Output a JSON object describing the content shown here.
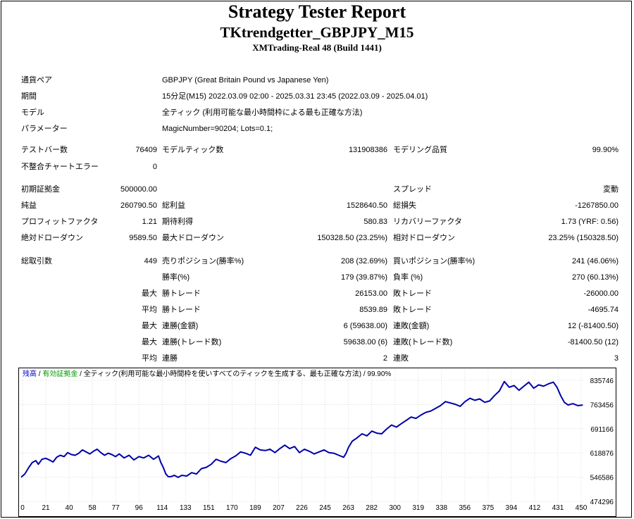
{
  "report": {
    "title": "Strategy Tester Report",
    "subtitle": "TKtrendgetter_GBPJPY_M15",
    "server": "XMTrading-Real 48 (Build 1441)"
  },
  "info": [
    {
      "label": "通貨ペア",
      "value": "GBPJPY (Great Britain Pound vs Japanese Yen)"
    },
    {
      "label": "期間",
      "value": "15分足(M15) 2022.03.09 02:00 - 2025.03.31 23:45 (2022.03.09 - 2025.04.01)"
    },
    {
      "label": "モデル",
      "value": "全ティック (利用可能な最小時間枠による最も正確な方法)"
    },
    {
      "label": "パラメーター",
      "value": "MagicNumber=90204; Lots=0.1;"
    }
  ],
  "stats": {
    "bars_label": "テストバー数",
    "bars": "76409",
    "ticks_label": "モデルティック数",
    "ticks": "131908386",
    "quality_label": "モデリング品質",
    "quality": "99.90%",
    "mismatch_label": "不整合チャートエラー",
    "mismatch": "0",
    "deposit_label": "初期証拠金",
    "deposit": "500000.00",
    "spread_label": "スプレッド",
    "spread": "変動",
    "net_label": "純益",
    "net": "260790.50",
    "gross_profit_label": "総利益",
    "gross_profit": "1528640.50",
    "gross_loss_label": "総損失",
    "gross_loss": "-1267850.00",
    "pf_label": "プロフィットファクタ",
    "pf": "1.21",
    "expected_label": "期待利得",
    "expected": "580.83",
    "recovery_label": "リカバリーファクタ",
    "recovery": "1.73 (YRF: 0.56)",
    "abs_dd_label": "絶対ドローダウン",
    "abs_dd": "9589.50",
    "max_dd_label": "最大ドローダウン",
    "max_dd": "150328.50 (23.25%)",
    "rel_dd_label": "相対ドローダウン",
    "rel_dd": "23.25% (150328.50)",
    "total_trades_label": "総取引数",
    "total_trades": "449",
    "short_label": "売りポジション(勝率%)",
    "short": "208 (32.69%)",
    "long_label": "買いポジション(勝率%)",
    "long": "241 (46.06%)",
    "win_pct_label": "勝率(%)",
    "win_pct": "179 (39.87%)",
    "loss_pct_label": "負率 (%)",
    "loss_pct": "270 (60.13%)",
    "max_word": "最大",
    "avg_word": "平均",
    "largest_win_label": "勝トレード",
    "largest_win": "26153.00",
    "largest_loss_label": "敗トレード",
    "largest_loss": "-26000.00",
    "avg_win_label": "勝トレード",
    "avg_win": "8539.89",
    "avg_loss_label": "敗トレード",
    "avg_loss": "-4695.74",
    "max_cons_win_label": "連勝(金額)",
    "max_cons_win": "6 (59638.00)",
    "max_cons_loss_label": "連敗(金額)",
    "max_cons_loss": "12 (-81400.50)",
    "max_cons_profit_label": "連勝(トレード数)",
    "max_cons_profit": "59638.00 (6)",
    "max_cons_lossamt_label": "連敗(トレード数)",
    "max_cons_lossamt": "-81400.50 (12)",
    "avg_cons_win_label": "連勝",
    "avg_cons_win": "2",
    "avg_cons_loss_label": "連敗",
    "avg_cons_loss": "3"
  },
  "chart_head": {
    "balance": "残高",
    "sep1": " / ",
    "equity": "有効証拠金",
    "sep2": " / ",
    "model": "全ティック(利用可能な最小時間枠を使いすべてのティックを生成する、最も正確な方法)",
    "sep3": " / ",
    "quality": "99.90%"
  },
  "chart_data": {
    "type": "line",
    "x_ticks": [
      "0",
      "21",
      "40",
      "58",
      "77",
      "96",
      "114",
      "133",
      "151",
      "170",
      "189",
      "207",
      "226",
      "245",
      "263",
      "282",
      "300",
      "319",
      "338",
      "356",
      "375",
      "394",
      "412",
      "431",
      "450"
    ],
    "y_ticks": [
      "835746",
      "763456",
      "691166",
      "618876",
      "546586",
      "474296"
    ],
    "xlim": [
      0,
      459
    ],
    "ylim": [
      474296,
      835746
    ],
    "grid": true,
    "line_color": "#0000aa",
    "series": [
      {
        "x": [
          0,
          3,
          6,
          9,
          12,
          14,
          17,
          20,
          23,
          26,
          29,
          32,
          35,
          38,
          41,
          44,
          47,
          50,
          53,
          56,
          59,
          62,
          65,
          68,
          71,
          74,
          77,
          80,
          84,
          88,
          92,
          96,
          100,
          104,
          108,
          112,
          114,
          116,
          118,
          120,
          122,
          125,
          128,
          131,
          135,
          139,
          143,
          147,
          151,
          155,
          159,
          163,
          167,
          171,
          175,
          179,
          183,
          187,
          191,
          195,
          199,
          203,
          207,
          211,
          215,
          219,
          223,
          227,
          231,
          235,
          239,
          243,
          247,
          251,
          255,
          259,
          263,
          265,
          267,
          270,
          274,
          278,
          282,
          286,
          290,
          294,
          298,
          302,
          306,
          310,
          314,
          318,
          322,
          326,
          330,
          334,
          338,
          342,
          346,
          350,
          354,
          358,
          362,
          366,
          370,
          374,
          378,
          382,
          386,
          390,
          394,
          398,
          402,
          406,
          410,
          414,
          418,
          422,
          426,
          430,
          434,
          437,
          440,
          443,
          446,
          450,
          454,
          458
        ],
        "y": [
          546586,
          556000,
          574000,
          590000,
          596000,
          585000,
          600000,
          603000,
          598000,
          592000,
          606000,
          612000,
          608000,
          620000,
          614000,
          612000,
          618000,
          628000,
          622000,
          616000,
          624000,
          630000,
          620000,
          612000,
          618000,
          614000,
          608000,
          616000,
          604000,
          612000,
          598000,
          608000,
          604000,
          612000,
          600000,
          610000,
          590000,
          575000,
          556000,
          548000,
          548000,
          552000,
          546000,
          552000,
          550000,
          560000,
          556000,
          572000,
          576000,
          585000,
          600000,
          594000,
          590000,
          602000,
          610000,
          622000,
          618000,
          612000,
          636000,
          628000,
          626000,
          630000,
          620000,
          632000,
          642000,
          632000,
          638000,
          620000,
          630000,
          624000,
          616000,
          622000,
          628000,
          620000,
          618000,
          612000,
          606000,
          618000,
          636000,
          654000,
          664000,
          676000,
          670000,
          684000,
          678000,
          676000,
          690000,
          702000,
          696000,
          706000,
          716000,
          726000,
          722000,
          732000,
          740000,
          744000,
          752000,
          760000,
          772000,
          768000,
          764000,
          758000,
          772000,
          782000,
          776000,
          780000,
          770000,
          774000,
          790000,
          804000,
          832000,
          815000,
          820000,
          806000,
          818000,
          830000,
          812000,
          822000,
          818000,
          825000,
          830000,
          815000,
          790000,
          770000,
          762000,
          766000,
          760000,
          762000
        ]
      }
    ]
  }
}
